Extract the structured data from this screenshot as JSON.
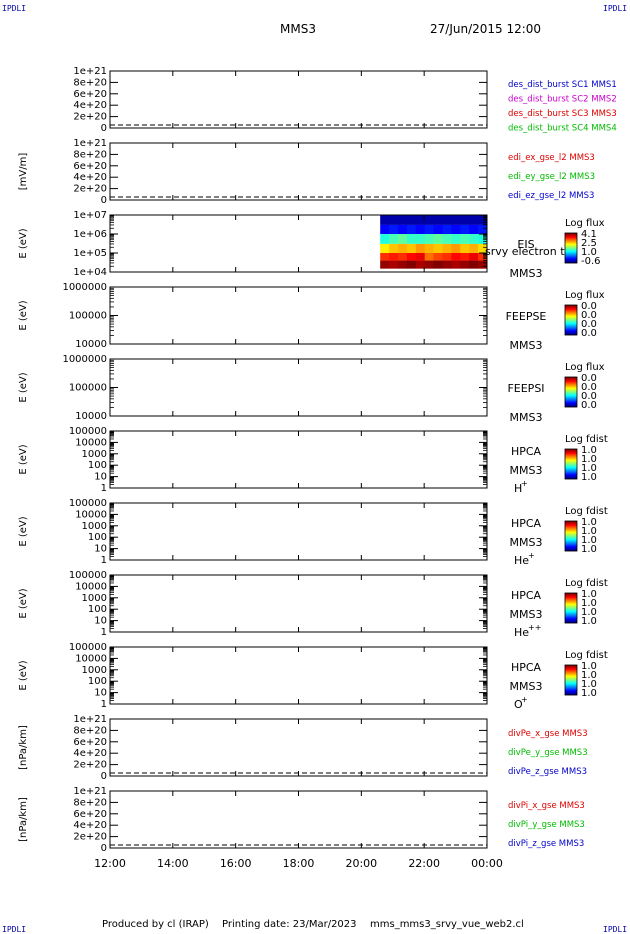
{
  "corner_label": "IPDLI",
  "header": {
    "spacecraft": "MMS3",
    "datetime": "27/Jun/2015 12:00"
  },
  "footer": {
    "produced_by": "Produced by cl (IRAP)",
    "printing_date": "Printing date: 23/Mar/2023",
    "script": "mms_mms3_srvy_vue_web2.cl"
  },
  "time_axis": {
    "ticks": [
      "12:00",
      "14:00",
      "16:00",
      "18:00",
      "20:00",
      "22:00",
      "00:00"
    ],
    "range_hours": [
      12,
      24
    ]
  },
  "colors": {
    "red": "#dd0000",
    "magenta": "#cc00cc",
    "green": "#00bb00",
    "blue": "#0000cc"
  },
  "chart_data": [
    {
      "type": "line",
      "id": "des_dist",
      "ylabel": "",
      "yticks": [
        "1e+21",
        "8e+20",
        "6e+20",
        "4e+20",
        "2e+20",
        "0"
      ],
      "ylim": [
        0,
        1e+21
      ],
      "zero_dashed": true,
      "series": [
        {
          "name": "des_dist_burst SC1 MMS1",
          "color": "#0000cc",
          "values": []
        },
        {
          "name": "des_dist_burst SC2 MMS2",
          "color": "#cc00cc",
          "values": []
        },
        {
          "name": "des_dist_burst SC3 MMS3",
          "color": "#dd0000",
          "values": []
        },
        {
          "name": "des_dist_burst SC4 MMS4",
          "color": "#00bb00",
          "values": []
        }
      ]
    },
    {
      "type": "line",
      "id": "edi",
      "ylabel": "[mV/m]",
      "yticks": [
        "1e+21",
        "8e+20",
        "6e+20",
        "4e+20",
        "2e+20",
        "0"
      ],
      "ylim": [
        0,
        1e+21
      ],
      "zero_dashed": true,
      "series": [
        {
          "name": "edi_ex_gse_l2 MMS3",
          "color": "#dd0000",
          "values": []
        },
        {
          "name": "edi_ey_gse_l2 MMS3",
          "color": "#00bb00",
          "values": []
        },
        {
          "name": "edi_ez_gse_l2 MMS3",
          "color": "#0000cc",
          "values": []
        }
      ]
    },
    {
      "type": "heatmap",
      "id": "eis",
      "ylabel": "E (eV)",
      "yticks": [
        "1e+07",
        "1e+06",
        "1e+05",
        "1e+04"
      ],
      "ylim": [
        10000.0,
        10000000.0
      ],
      "log": true,
      "instrument": [
        "EIS",
        "MMS3"
      ],
      "overlay_text": "srvy electron to",
      "colorbar": {
        "title": "Log flux",
        "ticks": [
          "4.1",
          "2.5",
          "1.0",
          "-0.6"
        ]
      },
      "time_range_hours": [
        20.6,
        24.0
      ],
      "rows": [
        {
          "energy_range": [
            "3e6",
            "1e7"
          ],
          "values": [
            -0.4,
            -0.4,
            -0.4,
            -0.4,
            -0.4,
            -0.4,
            -0.4,
            -0.4,
            -0.4,
            -0.4,
            -0.4,
            -0.4
          ]
        },
        {
          "energy_range": [
            "1e6",
            "3e6"
          ],
          "values": [
            0.0,
            0.1,
            0.0,
            0.1,
            0.0,
            0.1,
            0.0,
            0.1,
            0.0,
            0.1,
            0.0,
            0.1
          ]
        },
        {
          "energy_range": [
            "3e5",
            "1e6"
          ],
          "values": [
            1.3,
            1.5,
            1.6,
            1.4,
            1.4,
            1.5,
            1.6,
            1.5,
            1.4,
            1.5,
            1.4,
            1.3
          ]
        },
        {
          "energy_range": [
            "1e5",
            "3e5"
          ],
          "values": [
            2.4,
            2.6,
            2.7,
            2.6,
            2.8,
            2.7,
            2.6,
            2.7,
            2.8,
            2.6,
            2.7,
            2.5
          ]
        },
        {
          "energy_range": [
            "4e4",
            "1e5"
          ],
          "values": [
            3.3,
            3.4,
            3.3,
            3.5,
            3.6,
            3.0,
            3.2,
            3.3,
            3.5,
            3.4,
            3.6,
            3.3
          ]
        },
        {
          "energy_range": [
            "1.5e4",
            "4e4"
          ],
          "values": [
            4.0,
            3.9,
            4.0,
            4.1,
            3.9,
            4.0,
            4.1,
            4.0,
            3.9,
            4.0,
            4.1,
            4.0
          ]
        }
      ]
    },
    {
      "type": "heatmap",
      "id": "feepse",
      "ylabel": "E (eV)",
      "yticks": [
        "1000000",
        "100000",
        "10000"
      ],
      "ylim": [
        10000.0,
        1000000.0
      ],
      "log": true,
      "instrument": [
        "FEEPSE",
        "MMS3"
      ],
      "colorbar": {
        "title": "Log flux",
        "ticks": [
          "0.0",
          "0.0",
          "0.0",
          "0.0"
        ]
      },
      "rows": []
    },
    {
      "type": "heatmap",
      "id": "feepsi",
      "ylabel": "E (eV)",
      "yticks": [
        "1000000",
        "100000",
        "10000"
      ],
      "ylim": [
        10000.0,
        1000000.0
      ],
      "log": true,
      "instrument": [
        "FEEPSI",
        "MMS3"
      ],
      "colorbar": {
        "title": "Log flux",
        "ticks": [
          "0.0",
          "0.0",
          "0.0",
          "0.0"
        ]
      },
      "rows": []
    },
    {
      "type": "heatmap",
      "id": "hpca_h",
      "ylabel": "E (eV)",
      "yticks": [
        "100000",
        "10000",
        "1000",
        "100",
        "10",
        "1"
      ],
      "ylim": [
        1,
        100000.0
      ],
      "log": true,
      "instrument": [
        "HPCA",
        "MMS3"
      ],
      "species": "H",
      "species_sup": "+",
      "colorbar": {
        "title": "Log fdist",
        "ticks": [
          "1.0",
          "1.0",
          "1.0",
          "1.0"
        ]
      },
      "rows": []
    },
    {
      "type": "heatmap",
      "id": "hpca_he",
      "ylabel": "E (eV)",
      "yticks": [
        "100000",
        "10000",
        "1000",
        "100",
        "10",
        "1"
      ],
      "ylim": [
        1,
        100000.0
      ],
      "log": true,
      "instrument": [
        "HPCA",
        "MMS3"
      ],
      "species": "He",
      "species_sup": "+",
      "colorbar": {
        "title": "Log fdist",
        "ticks": [
          "1.0",
          "1.0",
          "1.0",
          "1.0"
        ]
      },
      "rows": []
    },
    {
      "type": "heatmap",
      "id": "hpca_hepp",
      "ylabel": "E (eV)",
      "yticks": [
        "100000",
        "10000",
        "1000",
        "100",
        "10",
        "1"
      ],
      "ylim": [
        1,
        100000.0
      ],
      "log": true,
      "instrument": [
        "HPCA",
        "MMS3"
      ],
      "species": "He",
      "species_sup": "++",
      "colorbar": {
        "title": "Log fdist",
        "ticks": [
          "1.0",
          "1.0",
          "1.0",
          "1.0"
        ]
      },
      "rows": []
    },
    {
      "type": "heatmap",
      "id": "hpca_o",
      "ylabel": "E (eV)",
      "yticks": [
        "100000",
        "10000",
        "1000",
        "100",
        "10",
        "1"
      ],
      "ylim": [
        1,
        100000.0
      ],
      "log": true,
      "instrument": [
        "HPCA",
        "MMS3"
      ],
      "species": "O",
      "species_sup": "+",
      "colorbar": {
        "title": "Log fdist",
        "ticks": [
          "1.0",
          "1.0",
          "1.0",
          "1.0"
        ]
      },
      "rows": []
    },
    {
      "type": "line",
      "id": "divpe",
      "ylabel": "[nPa/km]",
      "yticks": [
        "1e+21",
        "8e+20",
        "6e+20",
        "4e+20",
        "2e+20",
        "0"
      ],
      "ylim": [
        0,
        1e+21
      ],
      "zero_dashed": true,
      "series": [
        {
          "name": "divPe_x_gse MMS3",
          "color": "#dd0000",
          "values": []
        },
        {
          "name": "divPe_y_gse MMS3",
          "color": "#00bb00",
          "values": []
        },
        {
          "name": "divPe_z_gse MMS3",
          "color": "#0000cc",
          "values": []
        }
      ]
    },
    {
      "type": "line",
      "id": "divpi",
      "ylabel": "[nPa/km]",
      "yticks": [
        "1e+21",
        "8e+20",
        "6e+20",
        "4e+20",
        "2e+20",
        "0"
      ],
      "ylim": [
        0,
        1e+21
      ],
      "zero_dashed": true,
      "series": [
        {
          "name": "divPi_x_gse MMS3",
          "color": "#dd0000",
          "values": []
        },
        {
          "name": "divPi_y_gse MMS3",
          "color": "#00bb00",
          "values": []
        },
        {
          "name": "divPi_z_gse MMS3",
          "color": "#0000cc",
          "values": []
        }
      ]
    }
  ]
}
